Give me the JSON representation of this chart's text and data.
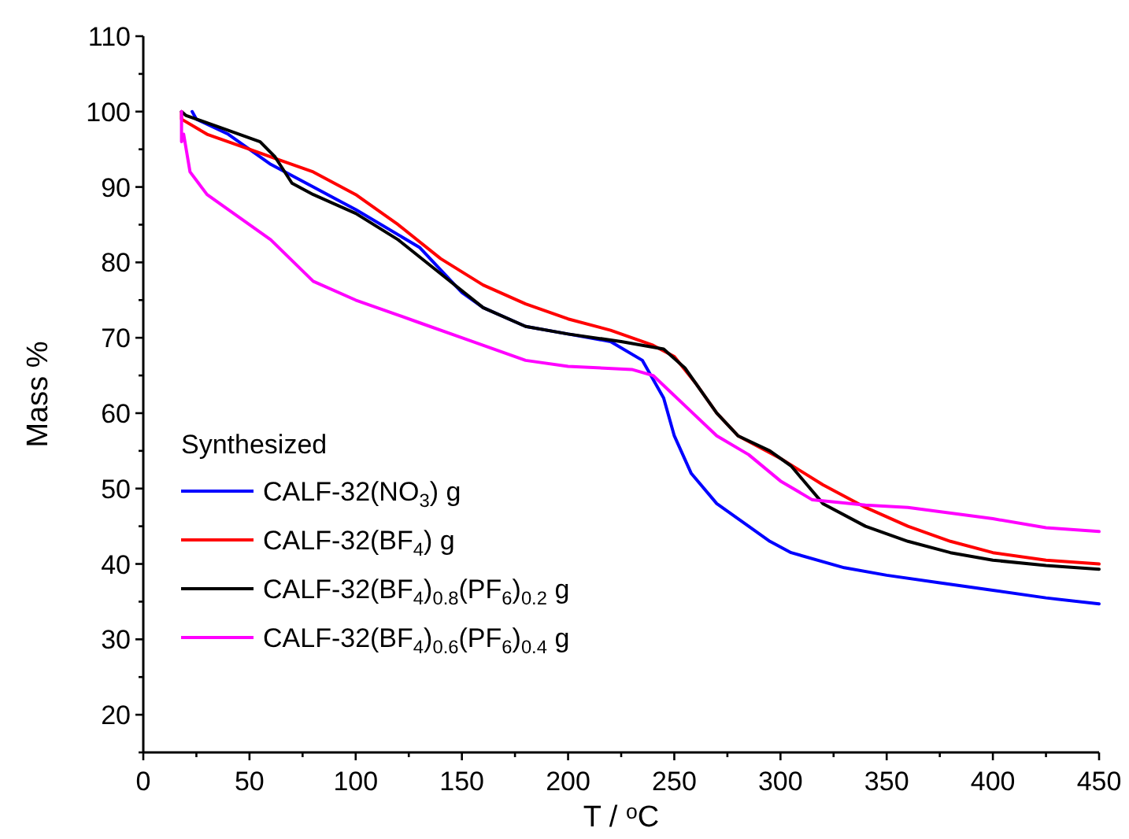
{
  "chart_data": {
    "type": "line",
    "xlabel": "T / $^{o}$C",
    "ylabel": "Mass %",
    "legend_title": "Synthesized",
    "legend": "bottom left",
    "grid": false,
    "line_style": "solid",
    "xlim": [
      0,
      450
    ],
    "xticks": [
      0,
      {
        "value": 25,
        "label": null
      },
      50,
      {
        "value": 75,
        "label": null
      },
      100,
      {
        "value": 125,
        "label": null
      },
      150,
      {
        "value": 175,
        "label": null
      },
      200,
      {
        "value": 225,
        "label": null
      },
      250,
      {
        "value": 275,
        "label": null
      },
      300,
      {
        "value": 325,
        "label": null
      },
      350,
      {
        "value": 375,
        "label": null
      },
      400,
      {
        "value": 425,
        "label": null
      },
      450
    ],
    "ylim": [
      15,
      110
    ],
    "yticks": [
      {
        "value": 15,
        "label": null
      },
      20,
      {
        "value": 25,
        "label": null
      },
      30,
      {
        "value": 35,
        "label": null
      },
      40,
      {
        "value": 45,
        "label": null
      },
      50,
      {
        "value": 55,
        "label": null
      },
      60,
      {
        "value": 65,
        "label": null
      },
      70,
      {
        "value": 75,
        "label": null
      },
      80,
      {
        "value": 85,
        "label": null
      },
      90,
      {
        "value": 95,
        "label": null
      },
      100,
      {
        "value": 105,
        "label": null
      },
      110
    ],
    "series": [
      {
        "name": "CALF-32(NO$_{3}$) g",
        "color": "#0000ff",
        "x": [
          23,
          25,
          40,
          60,
          80,
          100,
          130,
          150,
          160,
          180,
          200,
          220,
          235,
          245,
          250,
          258,
          270,
          285,
          295,
          305,
          330,
          350,
          375,
          400,
          425,
          450
        ],
        "values": [
          100,
          99,
          97,
          93,
          90,
          87,
          82,
          76,
          74,
          71.5,
          70.5,
          69.5,
          67,
          62,
          57,
          52,
          48,
          45,
          43,
          41.5,
          39.5,
          38.5,
          37.5,
          36.5,
          35.5,
          34.7
        ]
      },
      {
        "name": "CALF-32(BF$_{4}$) g",
        "color": "#ff0000",
        "x": [
          18,
          18,
          30,
          50,
          65,
          80,
          100,
          120,
          140,
          160,
          180,
          200,
          220,
          240,
          250,
          260,
          270,
          280,
          300,
          320,
          340,
          360,
          380,
          400,
          425,
          450
        ],
        "values": [
          100,
          99,
          97,
          95,
          93.5,
          92,
          89,
          85,
          80.5,
          77,
          74.5,
          72.5,
          71,
          69,
          67.5,
          64,
          60,
          57,
          54,
          50.5,
          47.5,
          45,
          43,
          41.5,
          40.5,
          40
        ]
      },
      {
        "name": "CALF-32(BF$_{4}$)$_{0.8}$(PF$_{6}$)$_{0.2}$ g",
        "color": "#000000",
        "x": [
          18,
          20,
          40,
          55,
          62,
          70,
          80,
          100,
          120,
          140,
          160,
          180,
          200,
          225,
          245,
          255,
          270,
          280,
          295,
          305,
          320,
          340,
          360,
          380,
          400,
          425,
          450
        ],
        "values": [
          100,
          99.5,
          97.5,
          96,
          94,
          90.5,
          89,
          86.5,
          83,
          78.5,
          74,
          71.5,
          70.5,
          69.5,
          68.5,
          66,
          60,
          57,
          55,
          53,
          48,
          45,
          43,
          41.5,
          40.5,
          39.8,
          39.3
        ]
      },
      {
        "name": "CALF-32(BF$_{4}$)$_{0.6}$(PF$_{6}$)$_{0.4}$ g",
        "color": "#ff00ff",
        "x": [
          18,
          18,
          19,
          22,
          30,
          45,
          60,
          80,
          100,
          130,
          150,
          180,
          200,
          230,
          240,
          255,
          270,
          285,
          300,
          315,
          340,
          360,
          400,
          425,
          450
        ],
        "values": [
          100,
          96,
          97,
          92,
          89,
          86,
          83,
          77.5,
          75,
          72,
          70,
          67,
          66.2,
          65.8,
          65,
          61,
          57,
          54.5,
          51,
          48.5,
          47.8,
          47.5,
          46,
          44.8,
          44.3
        ]
      }
    ]
  }
}
